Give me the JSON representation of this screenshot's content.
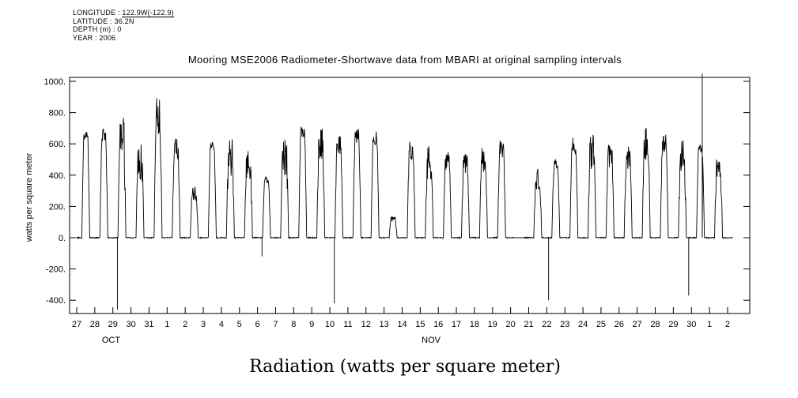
{
  "header": {
    "lines": [
      {
        "label": "LONGITUDE :",
        "value": "122.9W(-122.9)",
        "underline": true
      },
      {
        "label": "LATITUDE :",
        "value": "36.2N",
        "underline": false
      },
      {
        "label": "DEPTH (m) :",
        "value": "0",
        "underline": false
      },
      {
        "label": "YEAR :",
        "value": "2006",
        "underline": false
      }
    ]
  },
  "chart_data": {
    "type": "line",
    "title": "Mooring MSE2006 Radiometer-Shortwave data from MBARI at original sampling intervals",
    "ylabel": "watts per square meter",
    "caption": "Radiation (watts per square meter)",
    "ylim": [
      -485,
      1025
    ],
    "grid": false,
    "legend": "none",
    "line_color": "#000000",
    "yticks": [
      1000,
      800,
      600,
      400,
      200,
      0,
      -200,
      -400
    ],
    "ytick_labels": [
      "1000.",
      "800.",
      "600.",
      "400.",
      "200.",
      "0.",
      "-200.",
      "-400."
    ],
    "x_tick_labels": [
      "27",
      "28",
      "29",
      "30",
      "31",
      "1",
      "2",
      "3",
      "4",
      "5",
      "6",
      "7",
      "8",
      "9",
      "10",
      "11",
      "12",
      "13",
      "14",
      "15",
      "16",
      "17",
      "18",
      "19",
      "20",
      "21",
      "22",
      "23",
      "24",
      "25",
      "26",
      "27",
      "28",
      "29",
      "30",
      "1",
      "2"
    ],
    "month_labels": [
      {
        "label": "OCT",
        "day_index": 1.9
      },
      {
        "label": "NOV",
        "day_index": 19.6
      }
    ],
    "series": [
      {
        "name": "shortwave radiation",
        "units": "watts per square meter",
        "night_value": 0,
        "daily_peak_values": [
          690,
          700,
          780,
          620,
          910,
          640,
          330,
          610,
          630,
          560,
          390,
          630,
          720,
          700,
          650,
          710,
          680,
          140,
          620,
          590,
          570,
          540,
          590,
          630,
          0,
          450,
          510,
          640,
          660,
          620,
          600,
          730,
          660,
          630,
          600,
          570,
          550
        ],
        "anomaly_spikes": [
          {
            "day_index": 2.25,
            "value": -460
          },
          {
            "day_index": 10.25,
            "value": -120
          },
          {
            "day_index": 14.25,
            "value": -420
          },
          {
            "day_index": 26.1,
            "value": -400
          },
          {
            "day_index": 33.85,
            "value": -370
          },
          {
            "day_index": 34.6,
            "value": 1050
          }
        ]
      }
    ]
  }
}
